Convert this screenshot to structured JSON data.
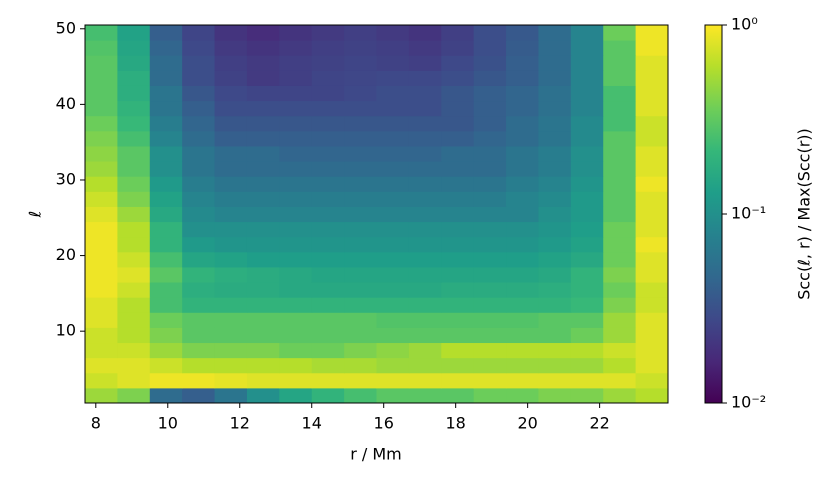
{
  "chart_data": {
    "type": "heatmap",
    "x_label": "r / Mm",
    "y_label": "ℓ",
    "colorbar_label": "Scc(ℓ, r) / Max(Scc(r))",
    "xlim": [
      7.7,
      23.9
    ],
    "xticks": [
      8,
      10,
      12,
      14,
      16,
      18,
      20,
      22
    ],
    "ylim": [
      0.5,
      50.5
    ],
    "yticks": [
      10,
      20,
      30,
      40,
      50
    ],
    "xbins": [
      7.7,
      8.6,
      9.5,
      10.4,
      11.3,
      12.2,
      13.1,
      14.0,
      14.9,
      15.8,
      16.7,
      17.6,
      18.5,
      19.4,
      20.3,
      21.2,
      22.1,
      23.0,
      23.9
    ],
    "ybins": [
      0.5,
      2.5,
      4.5,
      6.5,
      8.5,
      10.5,
      12.5,
      14.5,
      16.5,
      18.5,
      20.5,
      22.5,
      24.5,
      26.5,
      28.5,
      30.5,
      32.5,
      34.5,
      36.5,
      38.5,
      40.5,
      42.5,
      44.5,
      46.5,
      48.5,
      50.5
    ],
    "colormap": "viridis",
    "color_scale": "log",
    "clim": [
      0.01,
      1
    ],
    "cticks": [
      {
        "value": 0.01,
        "label": "10⁻²"
      },
      {
        "value": 0.1,
        "label": "10⁻¹"
      },
      {
        "value": 1,
        "label": "10⁰"
      }
    ],
    "values": [
      [
        0.5,
        0.4,
        0.05,
        0.04,
        0.06,
        0.1,
        0.15,
        0.2,
        0.25,
        0.3,
        0.3,
        0.3,
        0.35,
        0.35,
        0.4,
        0.4,
        0.5,
        0.6
      ],
      [
        0.7,
        0.8,
        0.9,
        0.9,
        0.85,
        0.8,
        0.8,
        0.8,
        0.8,
        0.8,
        0.8,
        0.8,
        0.8,
        0.8,
        0.8,
        0.8,
        0.8,
        0.7
      ],
      [
        0.8,
        0.8,
        0.7,
        0.6,
        0.6,
        0.6,
        0.6,
        0.55,
        0.55,
        0.5,
        0.5,
        0.5,
        0.5,
        0.5,
        0.5,
        0.5,
        0.6,
        0.8
      ],
      [
        0.7,
        0.7,
        0.5,
        0.4,
        0.4,
        0.4,
        0.35,
        0.35,
        0.4,
        0.45,
        0.5,
        0.6,
        0.6,
        0.6,
        0.6,
        0.6,
        0.7,
        0.8
      ],
      [
        0.7,
        0.6,
        0.4,
        0.3,
        0.3,
        0.3,
        0.3,
        0.3,
        0.3,
        0.3,
        0.3,
        0.3,
        0.3,
        0.3,
        0.3,
        0.35,
        0.5,
        0.8
      ],
      [
        0.8,
        0.6,
        0.35,
        0.3,
        0.3,
        0.3,
        0.3,
        0.3,
        0.3,
        0.28,
        0.28,
        0.28,
        0.28,
        0.28,
        0.3,
        0.3,
        0.5,
        0.8
      ],
      [
        0.8,
        0.6,
        0.25,
        0.2,
        0.2,
        0.2,
        0.2,
        0.2,
        0.2,
        0.2,
        0.2,
        0.2,
        0.2,
        0.2,
        0.2,
        0.22,
        0.4,
        0.7
      ],
      [
        0.9,
        0.7,
        0.25,
        0.18,
        0.17,
        0.17,
        0.16,
        0.16,
        0.16,
        0.16,
        0.16,
        0.17,
        0.17,
        0.17,
        0.18,
        0.2,
        0.35,
        0.7
      ],
      [
        0.9,
        0.8,
        0.3,
        0.2,
        0.18,
        0.17,
        0.16,
        0.15,
        0.15,
        0.15,
        0.15,
        0.15,
        0.15,
        0.15,
        0.16,
        0.2,
        0.4,
        0.8
      ],
      [
        0.9,
        0.7,
        0.25,
        0.15,
        0.14,
        0.13,
        0.13,
        0.13,
        0.13,
        0.13,
        0.13,
        0.13,
        0.13,
        0.13,
        0.14,
        0.16,
        0.35,
        0.8
      ],
      [
        0.9,
        0.6,
        0.2,
        0.12,
        0.11,
        0.11,
        0.11,
        0.11,
        0.11,
        0.11,
        0.11,
        0.11,
        0.11,
        0.11,
        0.12,
        0.14,
        0.35,
        0.9
      ],
      [
        0.9,
        0.6,
        0.2,
        0.1,
        0.1,
        0.1,
        0.1,
        0.1,
        0.1,
        0.1,
        0.1,
        0.1,
        0.1,
        0.1,
        0.11,
        0.13,
        0.35,
        0.8
      ],
      [
        0.8,
        0.5,
        0.16,
        0.09,
        0.08,
        0.08,
        0.08,
        0.08,
        0.08,
        0.08,
        0.08,
        0.08,
        0.08,
        0.08,
        0.1,
        0.12,
        0.3,
        0.8
      ],
      [
        0.7,
        0.4,
        0.14,
        0.08,
        0.07,
        0.07,
        0.07,
        0.07,
        0.07,
        0.07,
        0.07,
        0.07,
        0.07,
        0.08,
        0.09,
        0.12,
        0.3,
        0.8
      ],
      [
        0.6,
        0.35,
        0.12,
        0.07,
        0.06,
        0.06,
        0.06,
        0.06,
        0.06,
        0.06,
        0.06,
        0.06,
        0.06,
        0.07,
        0.08,
        0.11,
        0.3,
        0.9
      ],
      [
        0.5,
        0.3,
        0.1,
        0.06,
        0.05,
        0.05,
        0.05,
        0.05,
        0.05,
        0.05,
        0.05,
        0.05,
        0.05,
        0.06,
        0.07,
        0.1,
        0.3,
        0.8
      ],
      [
        0.45,
        0.3,
        0.1,
        0.06,
        0.05,
        0.05,
        0.045,
        0.045,
        0.045,
        0.045,
        0.045,
        0.05,
        0.05,
        0.06,
        0.07,
        0.1,
        0.3,
        0.8
      ],
      [
        0.4,
        0.25,
        0.08,
        0.05,
        0.04,
        0.04,
        0.04,
        0.04,
        0.04,
        0.04,
        0.04,
        0.04,
        0.045,
        0.05,
        0.06,
        0.09,
        0.3,
        0.7
      ],
      [
        0.35,
        0.22,
        0.07,
        0.045,
        0.035,
        0.035,
        0.035,
        0.035,
        0.035,
        0.035,
        0.035,
        0.035,
        0.04,
        0.05,
        0.06,
        0.09,
        0.25,
        0.7
      ],
      [
        0.3,
        0.2,
        0.06,
        0.04,
        0.03,
        0.03,
        0.03,
        0.03,
        0.03,
        0.03,
        0.03,
        0.035,
        0.04,
        0.045,
        0.055,
        0.08,
        0.25,
        0.8
      ],
      [
        0.3,
        0.18,
        0.06,
        0.035,
        0.028,
        0.026,
        0.026,
        0.026,
        0.028,
        0.03,
        0.03,
        0.035,
        0.04,
        0.045,
        0.055,
        0.08,
        0.25,
        0.8
      ],
      [
        0.3,
        0.18,
        0.05,
        0.03,
        0.025,
        0.022,
        0.024,
        0.026,
        0.027,
        0.028,
        0.028,
        0.03,
        0.035,
        0.04,
        0.05,
        0.08,
        0.3,
        0.8
      ],
      [
        0.3,
        0.16,
        0.05,
        0.03,
        0.024,
        0.022,
        0.024,
        0.025,
        0.026,
        0.025,
        0.024,
        0.028,
        0.032,
        0.04,
        0.05,
        0.08,
        0.3,
        0.8
      ],
      [
        0.28,
        0.15,
        0.045,
        0.028,
        0.022,
        0.02,
        0.022,
        0.024,
        0.025,
        0.024,
        0.022,
        0.025,
        0.03,
        0.038,
        0.05,
        0.08,
        0.3,
        0.9
      ],
      [
        0.25,
        0.14,
        0.04,
        0.026,
        0.02,
        0.018,
        0.02,
        0.022,
        0.024,
        0.022,
        0.02,
        0.024,
        0.03,
        0.036,
        0.05,
        0.08,
        0.35,
        0.9
      ]
    ]
  }
}
